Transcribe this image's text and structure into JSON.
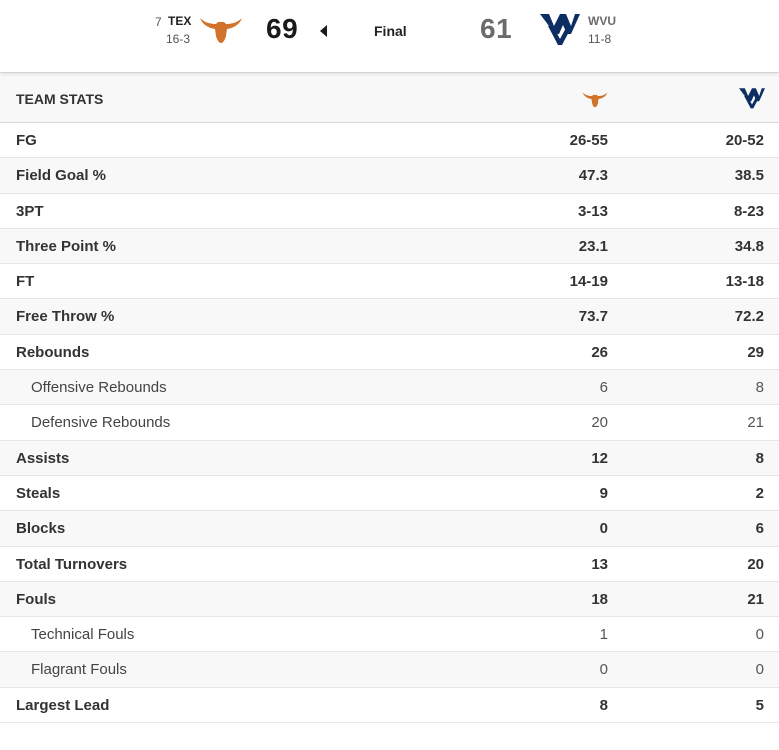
{
  "game": {
    "status": "Final",
    "away": {
      "rank": "7",
      "abbr": "TEX",
      "record": "16-3",
      "score": "69",
      "logo": "longhorn-icon",
      "color": "#d2732c"
    },
    "home": {
      "abbr": "WVU",
      "record": "11-8",
      "score": "61",
      "logo": "wvu-flying-wv-icon",
      "color": "#0c2e63"
    },
    "winner_indicator": "caret-left-icon"
  },
  "team_stats": {
    "title": "TEAM STATS",
    "rows": [
      {
        "label": "FG",
        "tex": "26-55",
        "wvu": "20-52",
        "sub": false
      },
      {
        "label": "Field Goal %",
        "tex": "47.3",
        "wvu": "38.5",
        "sub": false
      },
      {
        "label": "3PT",
        "tex": "3-13",
        "wvu": "8-23",
        "sub": false
      },
      {
        "label": "Three Point %",
        "tex": "23.1",
        "wvu": "34.8",
        "sub": false
      },
      {
        "label": "FT",
        "tex": "14-19",
        "wvu": "13-18",
        "sub": false
      },
      {
        "label": "Free Throw %",
        "tex": "73.7",
        "wvu": "72.2",
        "sub": false
      },
      {
        "label": "Rebounds",
        "tex": "26",
        "wvu": "29",
        "sub": false
      },
      {
        "label": "Offensive Rebounds",
        "tex": "6",
        "wvu": "8",
        "sub": true
      },
      {
        "label": "Defensive Rebounds",
        "tex": "20",
        "wvu": "21",
        "sub": true
      },
      {
        "label": "Assists",
        "tex": "12",
        "wvu": "8",
        "sub": false
      },
      {
        "label": "Steals",
        "tex": "9",
        "wvu": "2",
        "sub": false
      },
      {
        "label": "Blocks",
        "tex": "0",
        "wvu": "6",
        "sub": false
      },
      {
        "label": "Total Turnovers",
        "tex": "13",
        "wvu": "20",
        "sub": false
      },
      {
        "label": "Fouls",
        "tex": "18",
        "wvu": "21",
        "sub": false
      },
      {
        "label": "Technical Fouls",
        "tex": "1",
        "wvu": "0",
        "sub": true
      },
      {
        "label": "Flagrant Fouls",
        "tex": "0",
        "wvu": "0",
        "sub": true
      },
      {
        "label": "Largest Lead",
        "tex": "8",
        "wvu": "5",
        "sub": false
      }
    ]
  }
}
